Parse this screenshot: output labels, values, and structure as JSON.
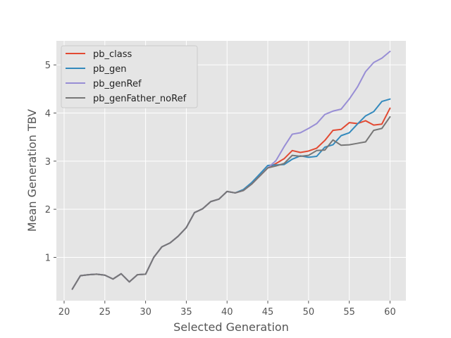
{
  "chart_data": {
    "type": "line",
    "title": "",
    "xlabel": "Selected Generation",
    "ylabel": "Mean Generation TBV",
    "xlim": [
      19.05,
      61.95
    ],
    "ylim": [
      0.1,
      5.5
    ],
    "xticks": [
      20,
      25,
      30,
      35,
      40,
      45,
      50,
      55,
      60
    ],
    "yticks": [
      1,
      2,
      3,
      4,
      5
    ],
    "grid": true,
    "legend": "top-left",
    "background": "#e5e5e5",
    "x": [
      21,
      22,
      23,
      24,
      25,
      26,
      27,
      28,
      29,
      30,
      31,
      32,
      33,
      34,
      35,
      36,
      37,
      38,
      39,
      40,
      41,
      42,
      43,
      44,
      45,
      46,
      47,
      48,
      49,
      50,
      51,
      52,
      53,
      54,
      55,
      56,
      57,
      58,
      59,
      60
    ],
    "series": [
      {
        "name": "pb_class",
        "color": "#e24a33",
        "values": [
          0.34,
          0.62,
          0.64,
          0.65,
          0.63,
          0.55,
          0.66,
          0.49,
          0.64,
          0.65,
          1.0,
          1.22,
          1.3,
          1.44,
          1.62,
          1.93,
          2.01,
          2.16,
          2.21,
          2.37,
          2.34,
          2.39,
          2.52,
          2.69,
          2.86,
          2.95,
          3.05,
          3.22,
          3.18,
          3.21,
          3.27,
          3.43,
          3.64,
          3.66,
          3.8,
          3.78,
          3.84,
          3.75,
          3.77,
          4.1
        ]
      },
      {
        "name": "pb_gen",
        "color": "#348abd",
        "values": [
          0.34,
          0.62,
          0.64,
          0.65,
          0.63,
          0.55,
          0.66,
          0.49,
          0.64,
          0.65,
          1.0,
          1.22,
          1.3,
          1.44,
          1.62,
          1.93,
          2.01,
          2.16,
          2.21,
          2.37,
          2.34,
          2.41,
          2.55,
          2.73,
          2.91,
          2.92,
          2.93,
          3.04,
          3.11,
          3.08,
          3.1,
          3.29,
          3.34,
          3.53,
          3.59,
          3.77,
          3.94,
          4.03,
          4.24,
          4.29
        ]
      },
      {
        "name": "pb_genRef",
        "color": "#988ed5",
        "values": [
          0.34,
          0.62,
          0.64,
          0.65,
          0.63,
          0.55,
          0.66,
          0.49,
          0.64,
          0.65,
          1.0,
          1.22,
          1.3,
          1.44,
          1.62,
          1.93,
          2.01,
          2.16,
          2.21,
          2.37,
          2.34,
          2.39,
          2.52,
          2.69,
          2.86,
          3.01,
          3.3,
          3.56,
          3.59,
          3.68,
          3.78,
          3.97,
          4.04,
          4.08,
          4.29,
          4.54,
          4.86,
          5.05,
          5.14,
          5.28
        ]
      },
      {
        "name": "pb_genFather_noRef",
        "color": "#777777",
        "values": [
          0.34,
          0.62,
          0.64,
          0.65,
          0.63,
          0.55,
          0.66,
          0.49,
          0.64,
          0.65,
          1.0,
          1.22,
          1.3,
          1.44,
          1.62,
          1.93,
          2.01,
          2.16,
          2.21,
          2.37,
          2.34,
          2.39,
          2.52,
          2.69,
          2.86,
          2.9,
          2.95,
          3.12,
          3.1,
          3.12,
          3.22,
          3.23,
          3.44,
          3.33,
          3.34,
          3.37,
          3.4,
          3.64,
          3.68,
          3.92
        ]
      }
    ]
  }
}
